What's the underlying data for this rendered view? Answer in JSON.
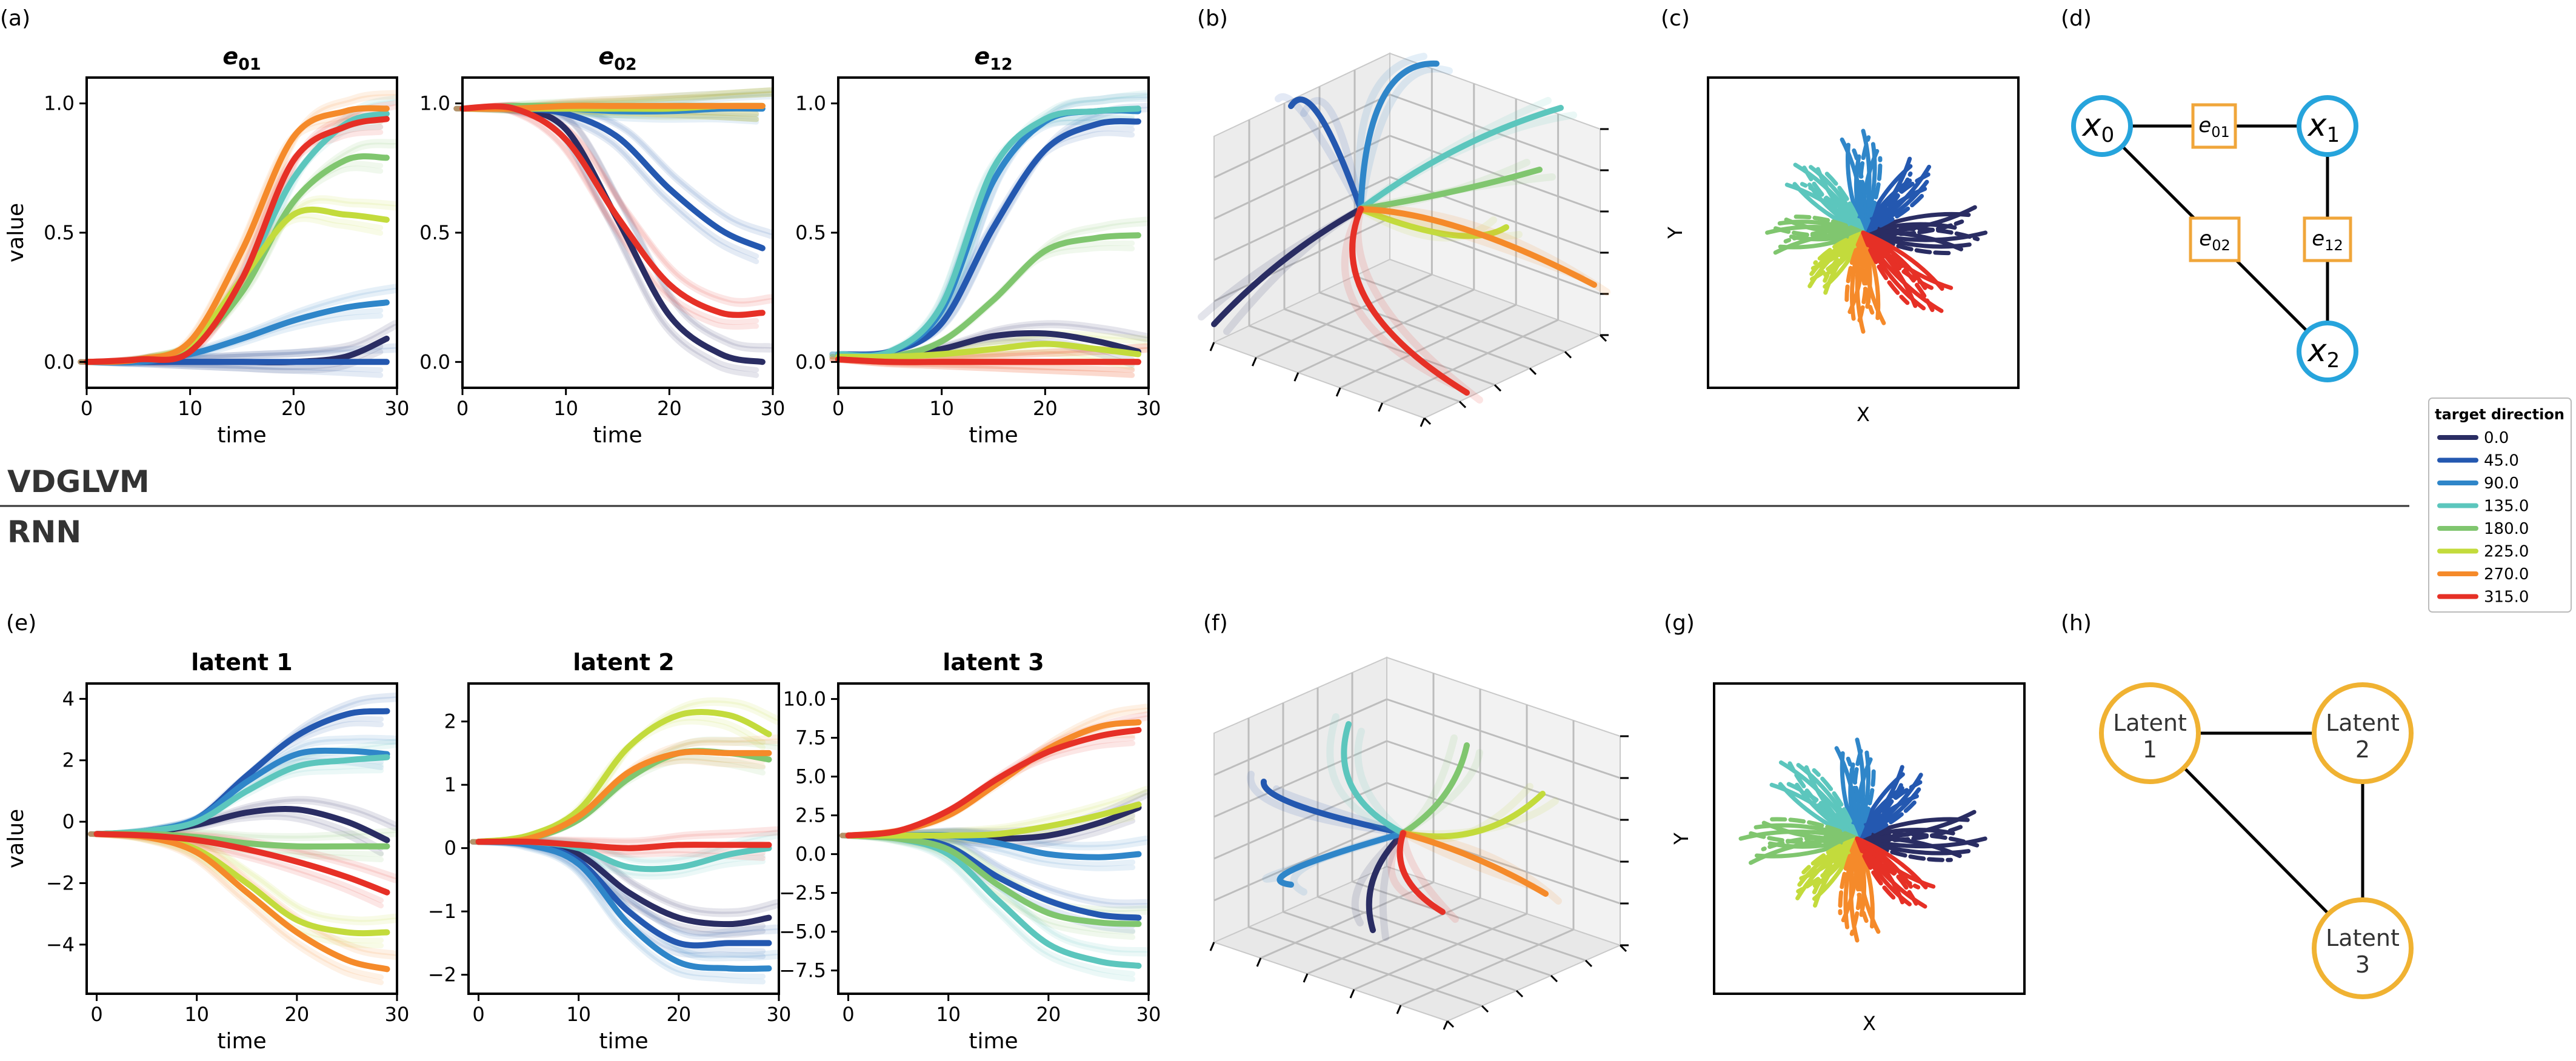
{
  "panel_letters": {
    "a": "(a)",
    "b": "(b)",
    "c": "(c)",
    "d": "(d)",
    "e": "(e)",
    "f": "(f)",
    "g": "(g)",
    "h": "(h)"
  },
  "section_labels": {
    "top": "VDGLVM",
    "bottom": "RNN"
  },
  "legend": {
    "title": "target direction",
    "entries": [
      {
        "label": "0.0",
        "color": "#2a2d63"
      },
      {
        "label": "45.0",
        "color": "#2458b0"
      },
      {
        "label": "90.0",
        "color": "#2f86c9"
      },
      {
        "label": "135.0",
        "color": "#5cc6bd"
      },
      {
        "label": "180.0",
        "color": "#80c66f"
      },
      {
        "label": "225.0",
        "color": "#c3db3c"
      },
      {
        "label": "270.0",
        "color": "#f58a2a"
      },
      {
        "label": "315.0",
        "color": "#e63026"
      }
    ]
  },
  "scatter_axes": {
    "xlabel": "X",
    "ylabel": "Y"
  },
  "graph_top": {
    "nodes": [
      {
        "base": "x",
        "sub": "0"
      },
      {
        "base": "x",
        "sub": "1"
      },
      {
        "base": "x",
        "sub": "2"
      }
    ],
    "edges": [
      {
        "base": "e",
        "sub": "01"
      },
      {
        "base": "e",
        "sub": "02"
      },
      {
        "base": "e",
        "sub": "12"
      }
    ],
    "node_color": "#26a4dc",
    "edge_box_color": "#f0a63a"
  },
  "graph_bottom": {
    "nodes": [
      {
        "line1": "Latent",
        "line2": "1"
      },
      {
        "line1": "Latent",
        "line2": "2"
      },
      {
        "line1": "Latent",
        "line2": "3"
      }
    ],
    "node_color": "#f0b232"
  },
  "chart_data": [
    {
      "id": "a1",
      "type": "line",
      "title": {
        "base": "e",
        "sub": "01"
      },
      "xlabel": "time",
      "ylabel": "value",
      "xlim": [
        0,
        30
      ],
      "ylim": [
        -0.1,
        1.1
      ],
      "xticks": [
        "0",
        "10",
        "20",
        "30"
      ],
      "yticks": [
        "0.0",
        "0.5",
        "1.0"
      ],
      "x": [
        0,
        5,
        10,
        15,
        20,
        25,
        29
      ],
      "series": [
        {
          "direction": "0.0",
          "values": [
            0.0,
            0.0,
            0.0,
            0.0,
            0.0,
            0.02,
            0.09
          ]
        },
        {
          "direction": "45.0",
          "values": [
            0.0,
            0.0,
            0.0,
            0.0,
            0.0,
            0.0,
            0.0
          ]
        },
        {
          "direction": "90.0",
          "values": [
            0.0,
            0.0,
            0.03,
            0.09,
            0.16,
            0.21,
            0.23
          ]
        },
        {
          "direction": "135.0",
          "values": [
            0.0,
            0.01,
            0.07,
            0.32,
            0.71,
            0.92,
            0.96
          ]
        },
        {
          "direction": "180.0",
          "values": [
            0.0,
            0.01,
            0.06,
            0.27,
            0.62,
            0.78,
            0.79
          ]
        },
        {
          "direction": "225.0",
          "values": [
            0.0,
            0.01,
            0.07,
            0.32,
            0.57,
            0.57,
            0.55
          ]
        },
        {
          "direction": "270.0",
          "values": [
            0.0,
            0.01,
            0.08,
            0.43,
            0.87,
            0.97,
            0.98
          ]
        },
        {
          "direction": "315.0",
          "values": [
            0.0,
            0.01,
            0.04,
            0.32,
            0.78,
            0.91,
            0.94
          ]
        }
      ]
    },
    {
      "id": "a2",
      "type": "line",
      "title": {
        "base": "e",
        "sub": "02"
      },
      "xlabel": "time",
      "ylabel": "",
      "xlim": [
        0,
        30
      ],
      "ylim": [
        -0.1,
        1.1
      ],
      "xticks": [
        "0",
        "10",
        "20",
        "30"
      ],
      "yticks": [
        "0.0",
        "0.5",
        "1.0"
      ],
      "x": [
        0,
        5,
        10,
        15,
        20,
        25,
        29
      ],
      "series": [
        {
          "direction": "0.0",
          "values": [
            0.98,
            0.98,
            0.9,
            0.55,
            0.18,
            0.03,
            0.0
          ]
        },
        {
          "direction": "45.0",
          "values": [
            0.98,
            0.98,
            0.96,
            0.87,
            0.67,
            0.51,
            0.44
          ]
        },
        {
          "direction": "90.0",
          "values": [
            0.98,
            0.98,
            0.98,
            0.97,
            0.97,
            0.98,
            0.98
          ]
        },
        {
          "direction": "135.0",
          "values": [
            0.98,
            0.98,
            0.98,
            0.98,
            0.99,
            0.99,
            0.99
          ]
        },
        {
          "direction": "180.0",
          "values": [
            0.98,
            0.99,
            0.99,
            0.99,
            0.99,
            0.99,
            0.99
          ]
        },
        {
          "direction": "225.0",
          "values": [
            0.98,
            0.98,
            0.98,
            0.98,
            0.98,
            0.99,
            0.99
          ]
        },
        {
          "direction": "270.0",
          "values": [
            0.98,
            0.98,
            0.99,
            0.99,
            0.99,
            0.99,
            0.99
          ]
        },
        {
          "direction": "315.0",
          "values": [
            0.98,
            0.98,
            0.86,
            0.56,
            0.3,
            0.19,
            0.19
          ]
        }
      ]
    },
    {
      "id": "a3",
      "type": "line",
      "title": {
        "base": "e",
        "sub": "12"
      },
      "xlabel": "time",
      "ylabel": "",
      "xlim": [
        0,
        30
      ],
      "ylim": [
        -0.1,
        1.1
      ],
      "xticks": [
        "0",
        "10",
        "20",
        "30"
      ],
      "yticks": [
        "0.0",
        "0.5",
        "1.0"
      ],
      "x": [
        0,
        5,
        10,
        15,
        20,
        25,
        29
      ],
      "series": [
        {
          "direction": "0.0",
          "values": [
            0.02,
            0.02,
            0.05,
            0.1,
            0.11,
            0.08,
            0.04
          ]
        },
        {
          "direction": "45.0",
          "values": [
            0.03,
            0.04,
            0.15,
            0.52,
            0.82,
            0.92,
            0.93
          ]
        },
        {
          "direction": "90.0",
          "values": [
            0.03,
            0.04,
            0.2,
            0.7,
            0.93,
            0.97,
            0.97
          ]
        },
        {
          "direction": "135.0",
          "values": [
            0.03,
            0.04,
            0.22,
            0.75,
            0.94,
            0.97,
            0.98
          ]
        },
        {
          "direction": "180.0",
          "values": [
            0.02,
            0.02,
            0.08,
            0.24,
            0.43,
            0.48,
            0.49
          ]
        },
        {
          "direction": "225.0",
          "values": [
            0.02,
            0.02,
            0.03,
            0.05,
            0.07,
            0.05,
            0.03
          ]
        },
        {
          "direction": "270.0",
          "values": [
            0.01,
            0.0,
            0.0,
            0.0,
            0.0,
            0.0,
            0.0
          ]
        },
        {
          "direction": "315.0",
          "values": [
            0.01,
            0.0,
            0.0,
            0.0,
            0.0,
            0.0,
            0.0
          ]
        }
      ]
    },
    {
      "id": "e1",
      "type": "line",
      "title": "latent 1",
      "xlabel": "time",
      "ylabel": "value",
      "xlim": [
        -1,
        30
      ],
      "ylim": [
        -5.6,
        4.5
      ],
      "xticks": [
        "0",
        "10",
        "20",
        "30"
      ],
      "yticks": [
        "−4",
        "−2",
        "0",
        "2",
        "4"
      ],
      "x": [
        0,
        5,
        10,
        15,
        20,
        25,
        29
      ],
      "series": [
        {
          "direction": "0.0",
          "values": [
            -0.4,
            -0.35,
            -0.1,
            0.3,
            0.4,
            0.0,
            -0.6
          ]
        },
        {
          "direction": "45.0",
          "values": [
            -0.4,
            -0.3,
            0.1,
            1.5,
            2.8,
            3.5,
            3.6
          ]
        },
        {
          "direction": "90.0",
          "values": [
            -0.4,
            -0.3,
            0.1,
            1.3,
            2.2,
            2.3,
            2.2
          ]
        },
        {
          "direction": "135.0",
          "values": [
            -0.4,
            -0.3,
            0.0,
            1.0,
            1.8,
            2.0,
            2.1
          ]
        },
        {
          "direction": "180.0",
          "values": [
            -0.4,
            -0.4,
            -0.5,
            -0.7,
            -0.8,
            -0.8,
            -0.8
          ]
        },
        {
          "direction": "225.0",
          "values": [
            -0.4,
            -0.5,
            -0.9,
            -2.0,
            -3.2,
            -3.6,
            -3.6
          ]
        },
        {
          "direction": "270.0",
          "values": [
            -0.4,
            -0.5,
            -1.0,
            -2.3,
            -3.6,
            -4.5,
            -4.8
          ]
        },
        {
          "direction": "315.0",
          "values": [
            -0.4,
            -0.45,
            -0.6,
            -0.9,
            -1.3,
            -1.8,
            -2.3
          ]
        }
      ]
    },
    {
      "id": "e2",
      "type": "line",
      "title": "latent 2",
      "xlabel": "time",
      "ylabel": "",
      "xlim": [
        -1,
        30
      ],
      "ylim": [
        -2.3,
        2.6
      ],
      "xticks": [
        "0",
        "10",
        "20",
        "30"
      ],
      "yticks": [
        "−2",
        "−1",
        "0",
        "1",
        "2"
      ],
      "x": [
        0,
        5,
        10,
        15,
        20,
        25,
        29
      ],
      "series": [
        {
          "direction": "0.0",
          "values": [
            0.1,
            0.08,
            -0.1,
            -0.7,
            -1.1,
            -1.2,
            -1.1
          ]
        },
        {
          "direction": "45.0",
          "values": [
            0.1,
            0.08,
            -0.2,
            -1.0,
            -1.5,
            -1.5,
            -1.5
          ]
        },
        {
          "direction": "90.0",
          "values": [
            0.1,
            0.05,
            -0.25,
            -1.2,
            -1.8,
            -1.9,
            -1.9
          ]
        },
        {
          "direction": "135.0",
          "values": [
            0.1,
            0.1,
            0.0,
            -0.3,
            -0.3,
            -0.1,
            0.0
          ]
        },
        {
          "direction": "180.0",
          "values": [
            0.1,
            0.15,
            0.45,
            1.1,
            1.5,
            1.5,
            1.4
          ]
        },
        {
          "direction": "225.0",
          "values": [
            0.1,
            0.2,
            0.6,
            1.6,
            2.1,
            2.1,
            1.8
          ]
        },
        {
          "direction": "270.0",
          "values": [
            0.1,
            0.15,
            0.5,
            1.2,
            1.5,
            1.5,
            1.5
          ]
        },
        {
          "direction": "315.0",
          "values": [
            0.1,
            0.1,
            0.05,
            0.0,
            0.05,
            0.05,
            0.05
          ]
        }
      ]
    },
    {
      "id": "e3",
      "type": "line",
      "title": "latent 3",
      "xlabel": "time",
      "ylabel": "",
      "xlim": [
        -1,
        30
      ],
      "ylim": [
        -9,
        11
      ],
      "xticks": [
        "0",
        "10",
        "20",
        "30"
      ],
      "yticks": [
        "−7.5",
        "−5.0",
        "−2.5",
        "0.0",
        "2.5",
        "5.0",
        "7.5",
        "10.0"
      ],
      "x": [
        0,
        5,
        10,
        15,
        20,
        25,
        29
      ],
      "series": [
        {
          "direction": "0.0",
          "values": [
            1.2,
            1.2,
            1.2,
            1.0,
            1.2,
            2.0,
            3.0
          ]
        },
        {
          "direction": "45.0",
          "values": [
            1.2,
            1.1,
            0.5,
            -1.5,
            -3.0,
            -3.9,
            -4.1
          ]
        },
        {
          "direction": "90.0",
          "values": [
            1.2,
            1.2,
            1.2,
            0.7,
            0.0,
            -0.2,
            0.0
          ]
        },
        {
          "direction": "135.0",
          "values": [
            1.2,
            1.0,
            0.0,
            -3.0,
            -5.8,
            -6.9,
            -7.2
          ]
        },
        {
          "direction": "180.0",
          "values": [
            1.2,
            1.0,
            0.3,
            -2.0,
            -3.8,
            -4.4,
            -4.5
          ]
        },
        {
          "direction": "225.0",
          "values": [
            1.2,
            1.2,
            1.2,
            1.3,
            1.8,
            2.5,
            3.2
          ]
        },
        {
          "direction": "270.0",
          "values": [
            1.2,
            1.5,
            2.5,
            4.6,
            6.8,
            8.2,
            8.5
          ]
        },
        {
          "direction": "315.0",
          "values": [
            1.2,
            1.5,
            2.8,
            4.9,
            6.6,
            7.6,
            8.0
          ]
        }
      ]
    }
  ]
}
